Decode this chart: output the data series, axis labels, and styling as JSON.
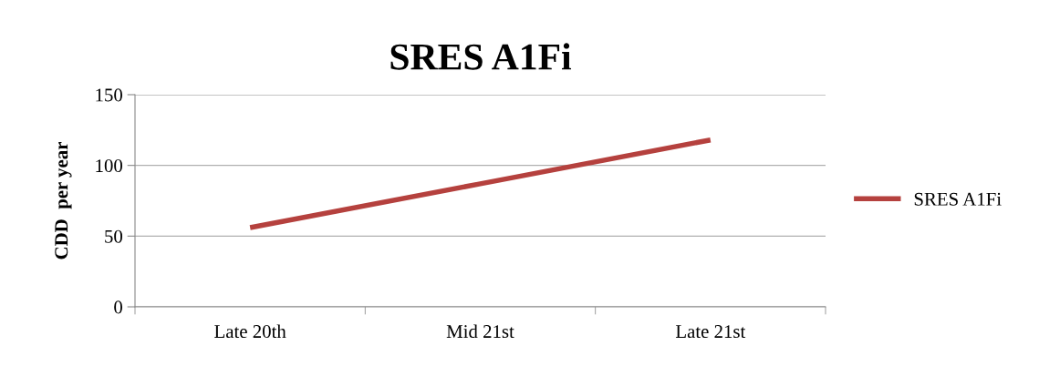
{
  "chart_data": {
    "type": "line",
    "title": "SRES A1Fi",
    "ylabel": "CDD  per year",
    "categories": [
      "Late 20th",
      "Mid 21st",
      "Late 21st"
    ],
    "series": [
      {
        "name": "SRES A1Fi",
        "color": "#b5413e",
        "values": [
          56,
          87,
          118
        ]
      }
    ],
    "ylim": [
      0,
      150
    ],
    "yticks": [
      0,
      50,
      100,
      150
    ],
    "grid": "y",
    "legend": "right",
    "marker": "none",
    "line_style": "solid"
  }
}
